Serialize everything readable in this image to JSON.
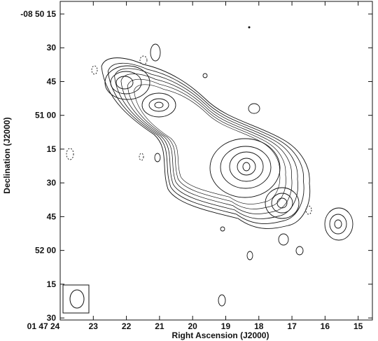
{
  "chart_data": {
    "type": "contour",
    "xlabel": "Right Ascension (J2000)",
    "ylabel": "Declination (J2000)",
    "xlim": [
      24,
      14.57
    ],
    "xticks": [
      {
        "value": 24,
        "label": "01 47 24"
      },
      23,
      22,
      21,
      20,
      19,
      18,
      17,
      16,
      15
    ],
    "ylim": [
      150.9,
      9.4
    ],
    "yticks": [
      {
        "value": 15,
        "label": "-08 50 15"
      },
      30,
      45,
      {
        "value": 60,
        "label": "51 00"
      },
      {
        "value": 75,
        "label": "15"
      },
      {
        "value": 90,
        "label": "30"
      },
      {
        "value": 105,
        "label": "45"
      },
      {
        "value": 120,
        "label": "52 00"
      },
      {
        "value": 135,
        "label": "15"
      },
      {
        "value": 150,
        "label": "30"
      }
    ]
  }
}
